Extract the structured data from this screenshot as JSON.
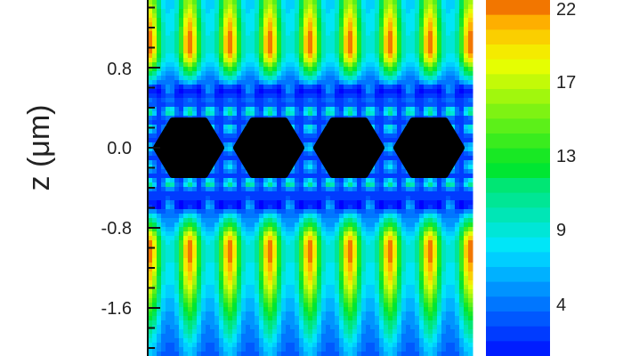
{
  "chart_data": {
    "type": "heatmap",
    "ylabel": "z (μm)",
    "y_ticks": [
      "0.8",
      "0.0",
      "-0.8",
      "-1.6"
    ],
    "y_tick_values": [
      0.8,
      0.0,
      -0.8,
      -1.6
    ],
    "ylim": [
      -2.1,
      1.5
    ],
    "colorbar": {
      "ticks": [
        "22",
        "17",
        "13",
        "9",
        "4"
      ],
      "tick_values": [
        22,
        17,
        13,
        9,
        4
      ],
      "range": [
        0.8,
        22.5
      ],
      "colormap": "jet"
    },
    "features": {
      "black_hexagons_count": 4,
      "upper_lobe_peak_z": 1.0,
      "lower_lobe_peak_z": -1.0,
      "peak_value": 22,
      "lobes_per_row": 8
    },
    "mask_color": "#000000"
  }
}
